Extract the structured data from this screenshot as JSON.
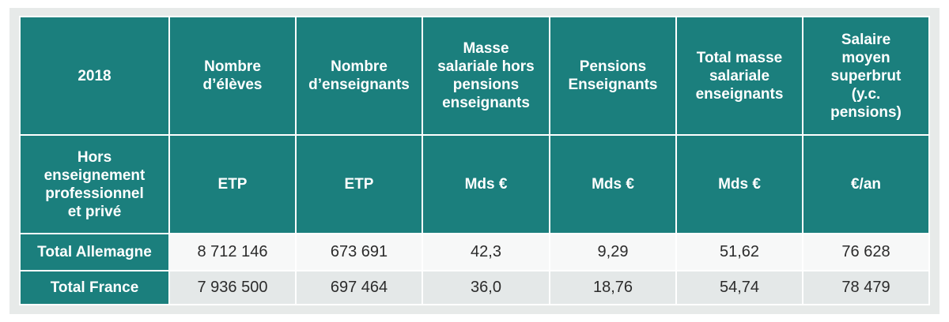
{
  "table": {
    "header": [
      "2018",
      "Nombre\nd’élèves",
      "Nombre\nd’enseignants",
      "Masse\nsalariale hors\npensions\nenseignants",
      "Pensions\nEnseignants",
      "Total masse\nsalariale\nenseignants",
      "Salaire\nmoyen\nsuperbrut\n(y.c.\npensions)"
    ],
    "units": [
      "Hors\nenseignement\nprofessionnel\net privé",
      "ETP",
      "ETP",
      "Mds €",
      "Mds €",
      "Mds €",
      "€/an"
    ],
    "rows": [
      {
        "label": "Total Allemagne",
        "values": [
          "8 712 146",
          "673 691",
          "42,3",
          "9,29",
          "51,62",
          "76 628"
        ]
      },
      {
        "label": "Total France",
        "values": [
          "7 936 500",
          "697 464",
          "36,0",
          "18,76",
          "54,74",
          "78 479"
        ]
      }
    ]
  },
  "colors": {
    "header_bg": "#1b7f7d",
    "header_text": "#ffffff",
    "row_light": "#f7f8f8",
    "row_alt": "#e4e8e8"
  }
}
